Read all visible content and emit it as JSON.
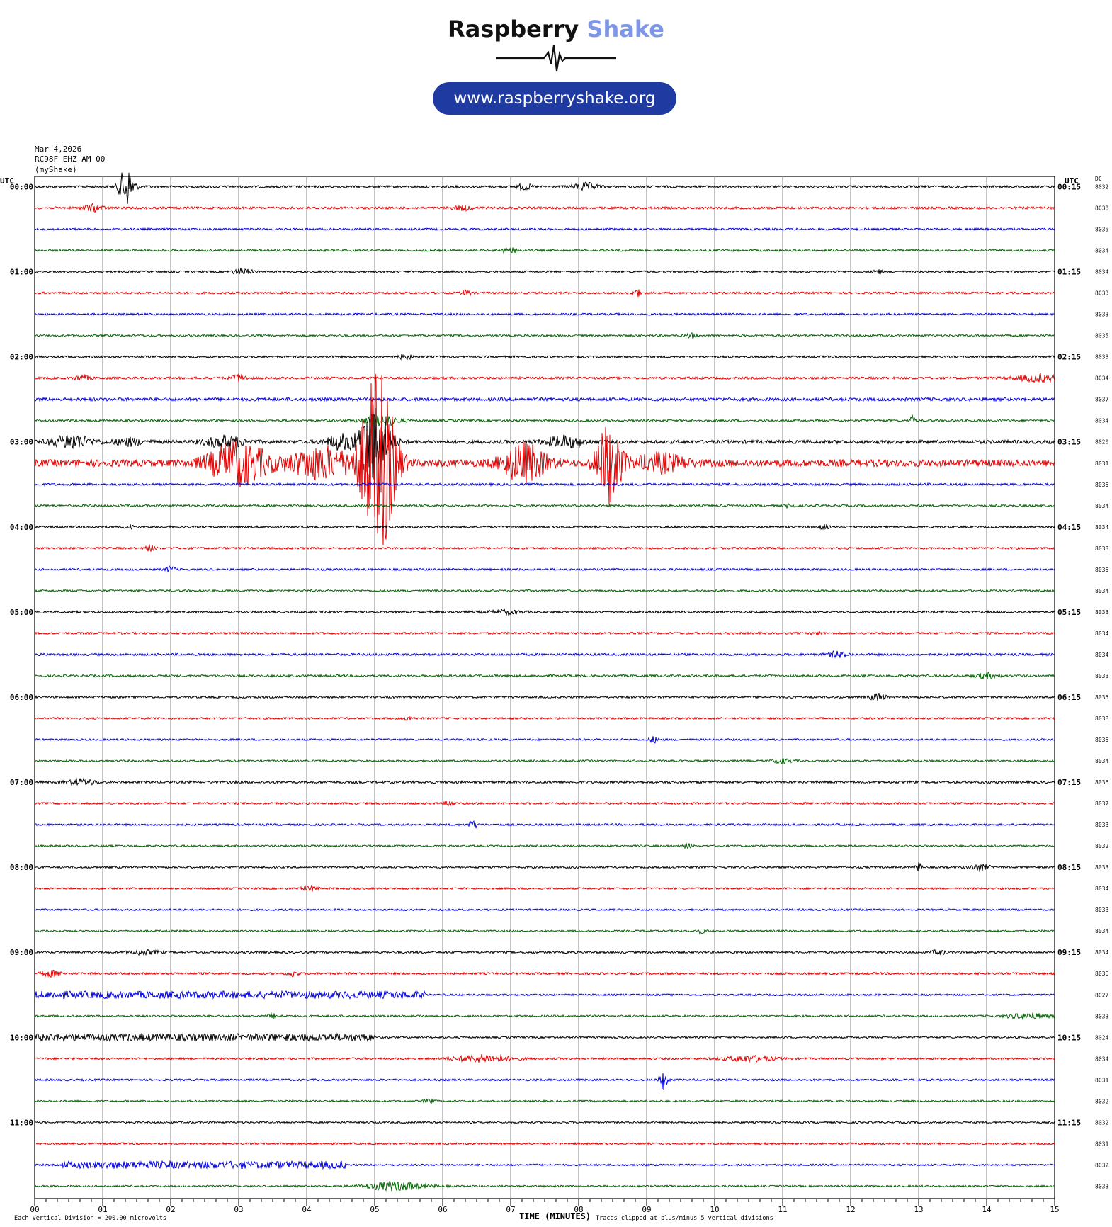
{
  "logo": {
    "title_main": "Raspberry",
    "title_accent": "Shake",
    "url": "www.raspberryshake.org",
    "accent_color": "#7d96e6",
    "url_bg_color": "#1f3aa0"
  },
  "header": {
    "date": "Mar 4,2026",
    "station": "RC98F EHZ AM 00",
    "network": "(myShake)"
  },
  "chart_data": {
    "type": "line",
    "plot": "helicorder",
    "left_axis_label": "UTC",
    "right_axis_label": "UTC",
    "dc_header": "DC",
    "xlabel": "TIME (MINUTES)",
    "xlim": [
      0,
      15
    ],
    "x_ticks": [
      "00",
      "01",
      "02",
      "03",
      "04",
      "05",
      "06",
      "07",
      "08",
      "09",
      "10",
      "11",
      "12",
      "13",
      "14",
      "15"
    ],
    "left_hour_labels": [
      "00:00",
      "01:00",
      "02:00",
      "03:00",
      "04:00",
      "05:00",
      "06:00",
      "07:00",
      "08:00",
      "09:00",
      "10:00",
      "11:00"
    ],
    "right_hour_labels": [
      "00:15",
      "01:15",
      "02:15",
      "03:15",
      "04:15",
      "05:15",
      "06:15",
      "07:15",
      "08:15",
      "09:15",
      "10:15",
      "11:15"
    ],
    "trace_colors": [
      "#000000",
      "#e00000",
      "#0000e0",
      "#006400"
    ],
    "dc_values": [
      "8032",
      "8038",
      "8035",
      "8034",
      "8034",
      "8033",
      "8033",
      "8035",
      "8033",
      "8034",
      "8037",
      "8034",
      "8020",
      "8031",
      "8035",
      "8034",
      "8034",
      "8033",
      "8035",
      "8034",
      "8033",
      "8034",
      "8034",
      "8033",
      "8035",
      "8038",
      "8035",
      "8034",
      "8036",
      "8037",
      "8033",
      "8032",
      "8033",
      "8034",
      "8033",
      "8034",
      "8034",
      "8036",
      "8027",
      "8033",
      "8024",
      "8034",
      "8031",
      "8032",
      "8032",
      "8031",
      "8032",
      "8033"
    ],
    "footer_left": "Each Vertical Division =  200.00 microvolts",
    "footer_right": "Traces clipped at plus/minus 5 vertical divisions",
    "traces": [
      {
        "noise": 1.6,
        "events": [
          {
            "t": 1.35,
            "amp": 28,
            "dur": 0.15
          },
          {
            "t": 7.2,
            "amp": 4,
            "dur": 0.15
          },
          {
            "t": 8.1,
            "amp": 5,
            "dur": 0.25
          }
        ]
      },
      {
        "noise": 1.6,
        "events": [
          {
            "t": 0.85,
            "amp": 5,
            "dur": 0.2
          },
          {
            "t": 6.3,
            "amp": 3,
            "dur": 0.2
          }
        ]
      },
      {
        "noise": 1.4,
        "events": []
      },
      {
        "noise": 1.4,
        "events": [
          {
            "t": 7.0,
            "amp": 3,
            "dur": 0.2
          }
        ]
      },
      {
        "noise": 1.4,
        "events": [
          {
            "t": 3.05,
            "amp": 4,
            "dur": 0.2
          },
          {
            "t": 12.4,
            "amp": 3,
            "dur": 0.1
          }
        ]
      },
      {
        "noise": 1.4,
        "events": [
          {
            "t": 6.35,
            "amp": 4,
            "dur": 0.1
          },
          {
            "t": 8.85,
            "amp": 5,
            "dur": 0.1
          }
        ]
      },
      {
        "noise": 1.4,
        "events": []
      },
      {
        "noise": 1.4,
        "events": [
          {
            "t": 9.65,
            "amp": 3,
            "dur": 0.1
          }
        ]
      },
      {
        "noise": 1.5,
        "events": [
          {
            "t": 5.45,
            "amp": 3,
            "dur": 0.15
          }
        ]
      },
      {
        "noise": 1.6,
        "events": [
          {
            "t": 0.7,
            "amp": 4,
            "dur": 0.15
          },
          {
            "t": 3.0,
            "amp": 5,
            "dur": 0.15
          },
          {
            "t": 14.8,
            "amp": 5,
            "dur": 0.5
          }
        ]
      },
      {
        "noise": 2.3,
        "events": []
      },
      {
        "noise": 1.5,
        "events": [
          {
            "t": 5.1,
            "amp": 8,
            "dur": 0.35
          },
          {
            "t": 12.9,
            "amp": 7,
            "dur": 0.06
          }
        ]
      },
      {
        "noise": 2.5,
        "events": [
          {
            "t": 0.55,
            "amp": 10,
            "dur": 0.4
          },
          {
            "t": 1.4,
            "amp": 5,
            "dur": 0.3
          },
          {
            "t": 2.8,
            "amp": 8,
            "dur": 0.4
          },
          {
            "t": 4.5,
            "amp": 10,
            "dur": 0.3
          },
          {
            "t": 5.0,
            "amp": 60,
            "dur": 0.3
          },
          {
            "t": 7.8,
            "amp": 8,
            "dur": 0.4
          }
        ]
      },
      {
        "noise": 5.0,
        "events": [
          {
            "t": 3.0,
            "amp": 30,
            "dur": 0.6
          },
          {
            "t": 4.2,
            "amp": 22,
            "dur": 0.6
          },
          {
            "t": 5.05,
            "amp": 130,
            "dur": 0.35
          },
          {
            "t": 7.2,
            "amp": 26,
            "dur": 0.45
          },
          {
            "t": 8.45,
            "amp": 58,
            "dur": 0.25
          },
          {
            "t": 9.2,
            "amp": 12,
            "dur": 0.5
          }
        ]
      },
      {
        "noise": 1.6,
        "events": []
      },
      {
        "noise": 1.5,
        "events": [
          {
            "t": 11.1,
            "amp": 3,
            "dur": 0.1
          }
        ]
      },
      {
        "noise": 1.5,
        "events": [
          {
            "t": 1.4,
            "amp": 3,
            "dur": 0.1
          },
          {
            "t": 11.6,
            "amp": 3,
            "dur": 0.1
          }
        ]
      },
      {
        "noise": 1.4,
        "events": [
          {
            "t": 1.7,
            "amp": 4,
            "dur": 0.1
          }
        ]
      },
      {
        "noise": 1.4,
        "events": [
          {
            "t": 2.0,
            "amp": 4,
            "dur": 0.1
          }
        ]
      },
      {
        "noise": 1.4,
        "events": []
      },
      {
        "noise": 1.6,
        "events": [
          {
            "t": 6.9,
            "amp": 3,
            "dur": 0.3
          }
        ]
      },
      {
        "noise": 1.4,
        "events": [
          {
            "t": 11.5,
            "amp": 3,
            "dur": 0.1
          }
        ]
      },
      {
        "noise": 1.6,
        "events": [
          {
            "t": 11.8,
            "amp": 4,
            "dur": 0.2
          }
        ]
      },
      {
        "noise": 1.6,
        "events": [
          {
            "t": 14.0,
            "amp": 4,
            "dur": 0.2
          }
        ]
      },
      {
        "noise": 1.5,
        "events": [
          {
            "t": 12.4,
            "amp": 5,
            "dur": 0.15
          }
        ]
      },
      {
        "noise": 1.3,
        "events": [
          {
            "t": 5.5,
            "amp": 3,
            "dur": 0.1
          }
        ]
      },
      {
        "noise": 1.3,
        "events": [
          {
            "t": 9.1,
            "amp": 4,
            "dur": 0.1
          }
        ]
      },
      {
        "noise": 1.3,
        "events": [
          {
            "t": 11.0,
            "amp": 3,
            "dur": 0.2
          }
        ]
      },
      {
        "noise": 1.7,
        "events": [
          {
            "t": 0.7,
            "amp": 4,
            "dur": 0.3
          }
        ]
      },
      {
        "noise": 1.4,
        "events": [
          {
            "t": 6.1,
            "amp": 4,
            "dur": 0.1
          }
        ]
      },
      {
        "noise": 1.4,
        "events": [
          {
            "t": 6.45,
            "amp": 5,
            "dur": 0.1
          }
        ]
      },
      {
        "noise": 1.3,
        "events": [
          {
            "t": 9.6,
            "amp": 3,
            "dur": 0.1
          }
        ]
      },
      {
        "noise": 1.4,
        "events": [
          {
            "t": 13.0,
            "amp": 6,
            "dur": 0.06
          },
          {
            "t": 13.9,
            "amp": 4,
            "dur": 0.2
          }
        ]
      },
      {
        "noise": 1.3,
        "events": [
          {
            "t": 4.05,
            "amp": 4,
            "dur": 0.15
          }
        ]
      },
      {
        "noise": 1.3,
        "events": []
      },
      {
        "noise": 1.3,
        "events": [
          {
            "t": 9.8,
            "amp": 3,
            "dur": 0.1
          }
        ]
      },
      {
        "noise": 1.5,
        "events": [
          {
            "t": 1.6,
            "amp": 3,
            "dur": 0.3
          },
          {
            "t": 13.3,
            "amp": 3,
            "dur": 0.15
          }
        ]
      },
      {
        "noise": 1.5,
        "events": [
          {
            "t": 0.25,
            "amp": 4,
            "dur": 0.2
          },
          {
            "t": 3.8,
            "amp": 4,
            "dur": 0.1
          }
        ]
      },
      {
        "noise": 1.3,
        "events": [
          {
            "t": 2.5,
            "amp": 4,
            "dur": 6.5
          }
        ]
      },
      {
        "noise": 1.4,
        "events": [
          {
            "t": 3.5,
            "amp": 3,
            "dur": 0.1
          },
          {
            "t": 14.6,
            "amp": 4,
            "dur": 0.4
          }
        ]
      },
      {
        "noise": 1.3,
        "events": [
          {
            "t": 2.4,
            "amp": 4,
            "dur": 5.2
          }
        ]
      },
      {
        "noise": 1.4,
        "events": [
          {
            "t": 6.6,
            "amp": 5,
            "dur": 0.6
          },
          {
            "t": 10.5,
            "amp": 4,
            "dur": 0.5
          }
        ]
      },
      {
        "noise": 1.4,
        "events": [
          {
            "t": 9.25,
            "amp": 14,
            "dur": 0.08
          }
        ]
      },
      {
        "noise": 1.3,
        "events": [
          {
            "t": 5.8,
            "amp": 3,
            "dur": 0.1
          }
        ]
      },
      {
        "noise": 1.3,
        "events": []
      },
      {
        "noise": 1.3,
        "events": []
      },
      {
        "noise": 1.3,
        "events": [
          {
            "t": 2.5,
            "amp": 4,
            "dur": 4.2
          }
        ]
      },
      {
        "noise": 1.3,
        "events": [
          {
            "t": 5.3,
            "amp": 6,
            "dur": 0.6
          }
        ]
      }
    ]
  }
}
